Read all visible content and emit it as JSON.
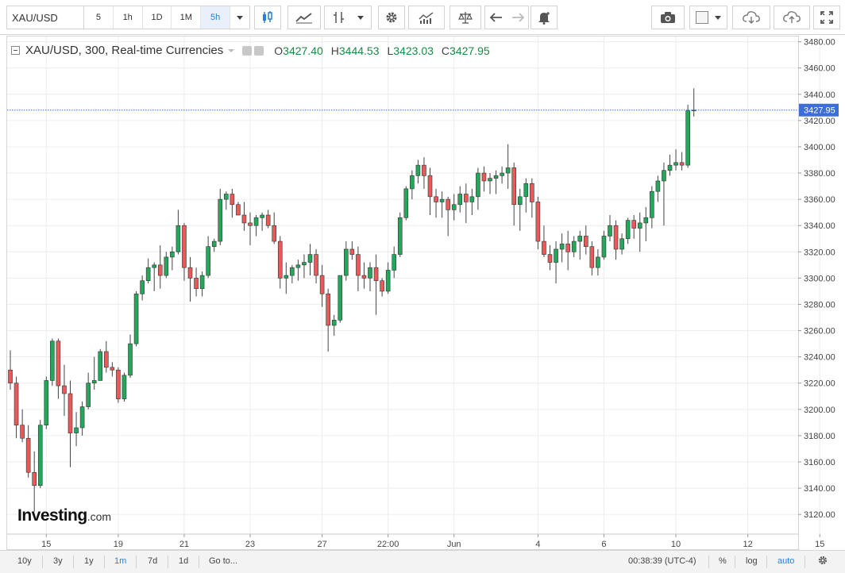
{
  "toolbar": {
    "symbol": "XAU/USD",
    "timeframes": [
      "5",
      "1h",
      "1D",
      "1M",
      "5h"
    ],
    "active_timeframe": "5h",
    "icons": [
      "candles-icon",
      "line-chart-icon",
      "indicator-icon",
      "settings-icon",
      "studies-icon",
      "compare-icon",
      "undo-icon",
      "redo-icon",
      "alert-icon",
      "camera-icon",
      "color-box-icon",
      "cloud-download-icon",
      "cloud-upload-icon",
      "fullscreen-icon"
    ]
  },
  "legend": {
    "title": "XAU/USD, 300, Real-time Currencies",
    "o_label": "O",
    "o_value": "3427.40",
    "h_label": "H",
    "h_value": "3444.53",
    "l_label": "L",
    "l_value": "3423.03",
    "c_label": "C",
    "c_value": "3427.95"
  },
  "watermark": {
    "brand": "Investing",
    "suffix": ".com"
  },
  "chart_data": {
    "type": "candlestick",
    "ylim": [
      3105,
      3484
    ],
    "y_ticks": [
      3120,
      3140,
      3160,
      3180,
      3200,
      3220,
      3240,
      3260,
      3280,
      3300,
      3320,
      3340,
      3360,
      3380,
      3400,
      3420,
      3440,
      3460,
      3480
    ],
    "y_tick_labels": [
      "3120.00",
      "3140.00",
      "3160.00",
      "3180.00",
      "3200.00",
      "3220.00",
      "3240.00",
      "3260.00",
      "3280.00",
      "3300.00",
      "3320.00",
      "3340.00",
      "3360.00",
      "3380.00",
      "3400.00",
      "3420.00",
      "3440.00",
      "3460.00",
      "3480.00"
    ],
    "x_ticks": [
      {
        "label": "15",
        "index": 6
      },
      {
        "label": "19",
        "index": 18
      },
      {
        "label": "21",
        "index": 29
      },
      {
        "label": "23",
        "index": 40
      },
      {
        "label": "27",
        "index": 52
      },
      {
        "label": "22:00",
        "index": 63
      },
      {
        "label": "Jun",
        "index": 74
      },
      {
        "label": "4",
        "index": 88
      },
      {
        "label": "6",
        "index": 99
      },
      {
        "label": "10",
        "index": 111
      },
      {
        "label": "12",
        "index": 123
      },
      {
        "label": "15",
        "index": 135
      }
    ],
    "last_price": 3427.95,
    "last_price_label": "3427.95",
    "colors": {
      "up": "#26a65b",
      "down": "#e8595a",
      "wick": "#444444",
      "price_line": "#3d6ed6",
      "grid": "#ececec"
    },
    "candles": [
      [
        3230,
        3245,
        3215,
        3220
      ],
      [
        3220,
        3225,
        3178,
        3188
      ],
      [
        3188,
        3200,
        3175,
        3178
      ],
      [
        3178,
        3188,
        3148,
        3152
      ],
      [
        3152,
        3168,
        3122,
        3142
      ],
      [
        3142,
        3192,
        3140,
        3188
      ],
      [
        3188,
        3225,
        3185,
        3222
      ],
      [
        3222,
        3254,
        3218,
        3252
      ],
      [
        3252,
        3254,
        3208,
        3218
      ],
      [
        3218,
        3234,
        3195,
        3212
      ],
      [
        3212,
        3222,
        3156,
        3182
      ],
      [
        3182,
        3198,
        3172,
        3186
      ],
      [
        3186,
        3206,
        3180,
        3202
      ],
      [
        3202,
        3228,
        3200,
        3220
      ],
      [
        3220,
        3240,
        3215,
        3222
      ],
      [
        3222,
        3246,
        3222,
        3244
      ],
      [
        3244,
        3252,
        3228,
        3232
      ],
      [
        3232,
        3236,
        3225,
        3230
      ],
      [
        3230,
        3232,
        3205,
        3208
      ],
      [
        3208,
        3228,
        3206,
        3226
      ],
      [
        3226,
        3257,
        3224,
        3250
      ],
      [
        3250,
        3290,
        3248,
        3288
      ],
      [
        3288,
        3302,
        3283,
        3298
      ],
      [
        3298,
        3315,
        3296,
        3308
      ],
      [
        3308,
        3312,
        3290,
        3310
      ],
      [
        3310,
        3325,
        3292,
        3302
      ],
      [
        3302,
        3320,
        3300,
        3316
      ],
      [
        3316,
        3324,
        3306,
        3320
      ],
      [
        3320,
        3352,
        3318,
        3340
      ],
      [
        3340,
        3342,
        3298,
        3308
      ],
      [
        3308,
        3316,
        3282,
        3300
      ],
      [
        3300,
        3308,
        3286,
        3292
      ],
      [
        3292,
        3305,
        3286,
        3302
      ],
      [
        3302,
        3332,
        3300,
        3324
      ],
      [
        3324,
        3330,
        3320,
        3328
      ],
      [
        3328,
        3368,
        3325,
        3360
      ],
      [
        3360,
        3366,
        3352,
        3364
      ],
      [
        3364,
        3368,
        3346,
        3356
      ],
      [
        3356,
        3358,
        3348,
        3348
      ],
      [
        3348,
        3358,
        3336,
        3342
      ],
      [
        3342,
        3350,
        3325,
        3340
      ],
      [
        3340,
        3348,
        3332,
        3346
      ],
      [
        3346,
        3350,
        3336,
        3348
      ],
      [
        3348,
        3352,
        3338,
        3340
      ],
      [
        3340,
        3350,
        3326,
        3328
      ],
      [
        3328,
        3332,
        3292,
        3300
      ],
      [
        3300,
        3312,
        3288,
        3302
      ],
      [
        3302,
        3310,
        3296,
        3308
      ],
      [
        3308,
        3314,
        3298,
        3310
      ],
      [
        3310,
        3318,
        3300,
        3312
      ],
      [
        3312,
        3326,
        3302,
        3318
      ],
      [
        3318,
        3322,
        3296,
        3302
      ],
      [
        3302,
        3310,
        3278,
        3288
      ],
      [
        3288,
        3292,
        3244,
        3264
      ],
      [
        3264,
        3272,
        3256,
        3268
      ],
      [
        3268,
        3302,
        3266,
        3302
      ],
      [
        3302,
        3328,
        3298,
        3322
      ],
      [
        3322,
        3328,
        3314,
        3318
      ],
      [
        3318,
        3324,
        3290,
        3302
      ],
      [
        3302,
        3312,
        3292,
        3300
      ],
      [
        3300,
        3312,
        3290,
        3308
      ],
      [
        3308,
        3318,
        3272,
        3298
      ],
      [
        3298,
        3300,
        3286,
        3290
      ],
      [
        3290,
        3312,
        3288,
        3306
      ],
      [
        3306,
        3324,
        3300,
        3318
      ],
      [
        3318,
        3350,
        3316,
        3346
      ],
      [
        3346,
        3370,
        3344,
        3368
      ],
      [
        3368,
        3382,
        3360,
        3378
      ],
      [
        3378,
        3390,
        3372,
        3386
      ],
      [
        3386,
        3392,
        3368,
        3378
      ],
      [
        3378,
        3384,
        3348,
        3362
      ],
      [
        3362,
        3368,
        3346,
        3358
      ],
      [
        3358,
        3366,
        3346,
        3360
      ],
      [
        3360,
        3362,
        3332,
        3352
      ],
      [
        3352,
        3364,
        3344,
        3356
      ],
      [
        3356,
        3370,
        3350,
        3364
      ],
      [
        3364,
        3372,
        3342,
        3358
      ],
      [
        3358,
        3368,
        3348,
        3362
      ],
      [
        3362,
        3384,
        3352,
        3380
      ],
      [
        3380,
        3385,
        3366,
        3374
      ],
      [
        3374,
        3380,
        3364,
        3376
      ],
      [
        3376,
        3382,
        3364,
        3378
      ],
      [
        3378,
        3385,
        3372,
        3380
      ],
      [
        3380,
        3402,
        3368,
        3384
      ],
      [
        3384,
        3388,
        3340,
        3356
      ],
      [
        3356,
        3368,
        3336,
        3362
      ],
      [
        3362,
        3376,
        3350,
        3372
      ],
      [
        3372,
        3376,
        3346,
        3358
      ],
      [
        3358,
        3362,
        3322,
        3328
      ],
      [
        3328,
        3340,
        3316,
        3318
      ],
      [
        3318,
        3325,
        3306,
        3312
      ],
      [
        3312,
        3328,
        3296,
        3322
      ],
      [
        3322,
        3334,
        3312,
        3326
      ],
      [
        3326,
        3336,
        3306,
        3320
      ],
      [
        3320,
        3332,
        3316,
        3328
      ],
      [
        3328,
        3336,
        3314,
        3332
      ],
      [
        3332,
        3340,
        3318,
        3324
      ],
      [
        3324,
        3328,
        3302,
        3308
      ],
      [
        3308,
        3322,
        3302,
        3316
      ],
      [
        3316,
        3336,
        3314,
        3332
      ],
      [
        3332,
        3348,
        3328,
        3340
      ],
      [
        3340,
        3344,
        3314,
        3322
      ],
      [
        3322,
        3334,
        3318,
        3330
      ],
      [
        3330,
        3346,
        3326,
        3344
      ],
      [
        3344,
        3348,
        3330,
        3338
      ],
      [
        3338,
        3350,
        3320,
        3342
      ],
      [
        3342,
        3354,
        3328,
        3346
      ],
      [
        3346,
        3370,
        3338,
        3366
      ],
      [
        3366,
        3378,
        3358,
        3374
      ],
      [
        3374,
        3388,
        3340,
        3382
      ],
      [
        3382,
        3394,
        3378,
        3386
      ],
      [
        3386,
        3398,
        3382,
        3388
      ],
      [
        3388,
        3396,
        3382,
        3386
      ],
      [
        3386,
        3432,
        3384,
        3427.4
      ],
      [
        3427.4,
        3444.53,
        3423.03,
        3427.95
      ]
    ]
  },
  "bottom": {
    "ranges": [
      "10y",
      "3y",
      "1y",
      "1m",
      "7d",
      "1d"
    ],
    "active_range": "1m",
    "goto": "Go to...",
    "time": "00:38:39 (UTC-4)",
    "percent": "%",
    "log": "log",
    "auto": "auto"
  }
}
